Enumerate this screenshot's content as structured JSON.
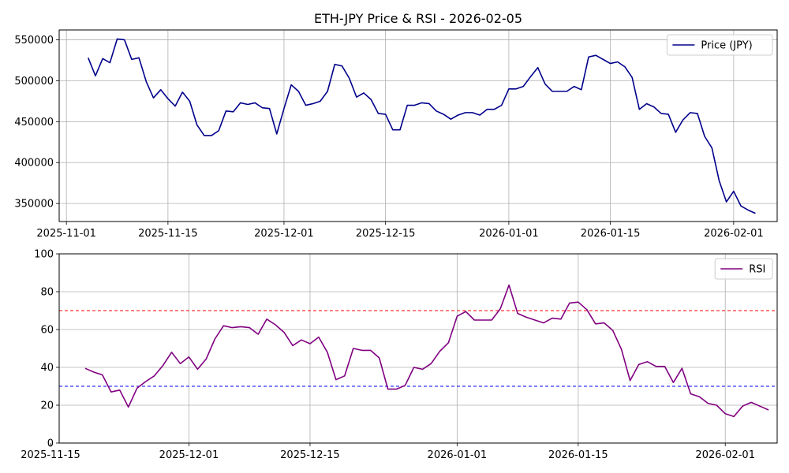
{
  "figure_title": "ETH-JPY Price & RSI - 2026-02-05",
  "chart_data": [
    {
      "type": "line",
      "title": "",
      "xlabel": "",
      "ylabel": "",
      "x_axis": "date",
      "xlim": [
        "2025-10-31",
        "2026-02-07"
      ],
      "ylim": [
        328000,
        562000
      ],
      "x_ticks": [
        "2025-11-01",
        "2025-11-15",
        "2025-12-01",
        "2025-12-15",
        "2026-01-01",
        "2026-01-15",
        "2026-02-01"
      ],
      "y_ticks": [
        350000,
        400000,
        450000,
        500000,
        550000
      ],
      "grid": true,
      "legend_position": "top-right",
      "x_start": "2025-11-04",
      "series": [
        {
          "name": "Price (JPY)",
          "color": "#00008b",
          "values": [
            528000,
            506000,
            527000,
            522000,
            551000,
            550000,
            526000,
            528000,
            499000,
            479000,
            489000,
            478000,
            469000,
            486000,
            475000,
            446000,
            433000,
            433000,
            439000,
            463000,
            462000,
            473000,
            471000,
            473000,
            467000,
            466000,
            435000,
            466000,
            495000,
            487000,
            470000,
            472000,
            475000,
            487000,
            520000,
            518000,
            503000,
            480000,
            485000,
            477000,
            460000,
            459000,
            440000,
            440000,
            470000,
            470000,
            473000,
            472000,
            463000,
            459000,
            453000,
            458000,
            461000,
            461000,
            458000,
            465000,
            465000,
            470000,
            490000,
            490000,
            493000,
            505000,
            516000,
            496000,
            487000,
            487000,
            487000,
            493000,
            489000,
            529000,
            531000,
            526000,
            521000,
            523000,
            517000,
            504000,
            465000,
            472000,
            468000,
            460000,
            459000,
            437000,
            452000,
            461000,
            460000,
            432000,
            418000,
            378000,
            352000,
            365000,
            347000,
            342000,
            338000
          ]
        }
      ]
    },
    {
      "type": "line",
      "title": "",
      "xlabel": "",
      "ylabel": "",
      "x_axis": "date",
      "xlim": [
        "2025-11-16",
        "2026-02-07"
      ],
      "ylim": [
        0,
        100
      ],
      "x_ticks": [
        "2025-11-15",
        "2025-12-01",
        "2025-12-15",
        "2026-01-01",
        "2026-01-15",
        "2026-02-01"
      ],
      "y_ticks": [
        0,
        20,
        40,
        60,
        80,
        100
      ],
      "grid": true,
      "legend_position": "top-right",
      "x_start": "2025-11-19",
      "series": [
        {
          "name": "RSI",
          "color": "#800080",
          "values": [
            39.5,
            37.5,
            36.0,
            27.0,
            28.0,
            19.0,
            29.0,
            32.5,
            35.5,
            41.0,
            48.0,
            42.0,
            45.5,
            39.0,
            44.5,
            55.0,
            62.0,
            61.0,
            61.5,
            61.0,
            57.5,
            65.5,
            62.5,
            58.5,
            51.5,
            54.5,
            52.5,
            56.0,
            48.0,
            33.5,
            35.5,
            50.0,
            49.0,
            49.0,
            45.0,
            28.5,
            28.5,
            30.5,
            40.0,
            39.0,
            42.0,
            48.5,
            53.0,
            67.0,
            69.5,
            65.0,
            65.0,
            65.0,
            71.0,
            83.5,
            68.5,
            66.5,
            65.0,
            63.5,
            66.0,
            65.5,
            74.0,
            74.5,
            70.5,
            63.0,
            63.5,
            59.5,
            49.5,
            33.0,
            41.5,
            43.0,
            40.5,
            40.5,
            32.0,
            39.5,
            26.0,
            24.5,
            21.0,
            20.0,
            15.5,
            14.0,
            19.5,
            21.5,
            19.5,
            17.5
          ]
        }
      ],
      "reference_lines": [
        {
          "value": 70,
          "color": "#ff0000",
          "style": "dashed"
        },
        {
          "value": 30,
          "color": "#0000ff",
          "style": "dashed"
        }
      ]
    }
  ]
}
